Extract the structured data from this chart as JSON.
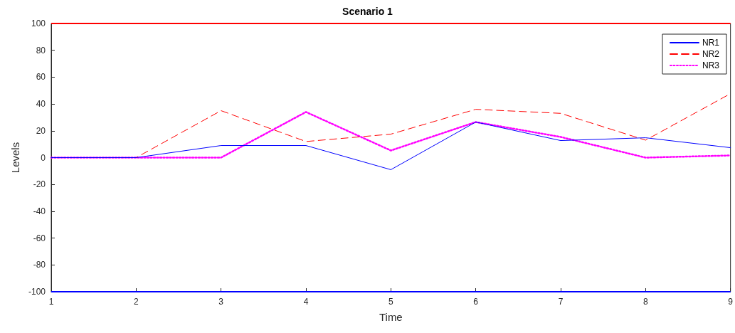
{
  "chart_data": {
    "type": "line",
    "title": "Scenario 1",
    "xlabel": "Time",
    "ylabel": "Levels",
    "x": [
      1,
      2,
      3,
      4,
      5,
      6,
      7,
      8,
      9
    ],
    "series": [
      {
        "name": "NR1",
        "color": "#0000ff",
        "line_style": "solid",
        "values": [
          0,
          0,
          9,
          9,
          -9,
          26.5,
          12.7,
          14.8,
          7.4
        ]
      },
      {
        "name": "NR2",
        "color": "#ff0000",
        "line_style": "dashed",
        "values": [
          0,
          0,
          35,
          12,
          17.5,
          36,
          33,
          13,
          47.7
        ]
      },
      {
        "name": "NR3",
        "color": "#ff00ff",
        "line_style": "dotted",
        "values": [
          0,
          0,
          0,
          34,
          5.3,
          26.5,
          15.4,
          0,
          1.6
        ]
      }
    ],
    "xlim": [
      1,
      9
    ],
    "xticks": [
      1,
      2,
      3,
      4,
      5,
      6,
      7,
      8,
      9
    ],
    "ylim": [
      -100,
      100
    ],
    "yticks": [
      -100,
      -80,
      -60,
      -40,
      -20,
      0,
      20,
      40,
      60,
      80,
      100
    ],
    "ref_lines": [
      {
        "axis": "y",
        "value": 100,
        "color": "#ff0000",
        "line_style": "solid"
      },
      {
        "axis": "y",
        "value": -100,
        "color": "#0000ff",
        "line_style": "solid"
      }
    ],
    "grid": false,
    "legend": "top right",
    "marker": "none"
  }
}
